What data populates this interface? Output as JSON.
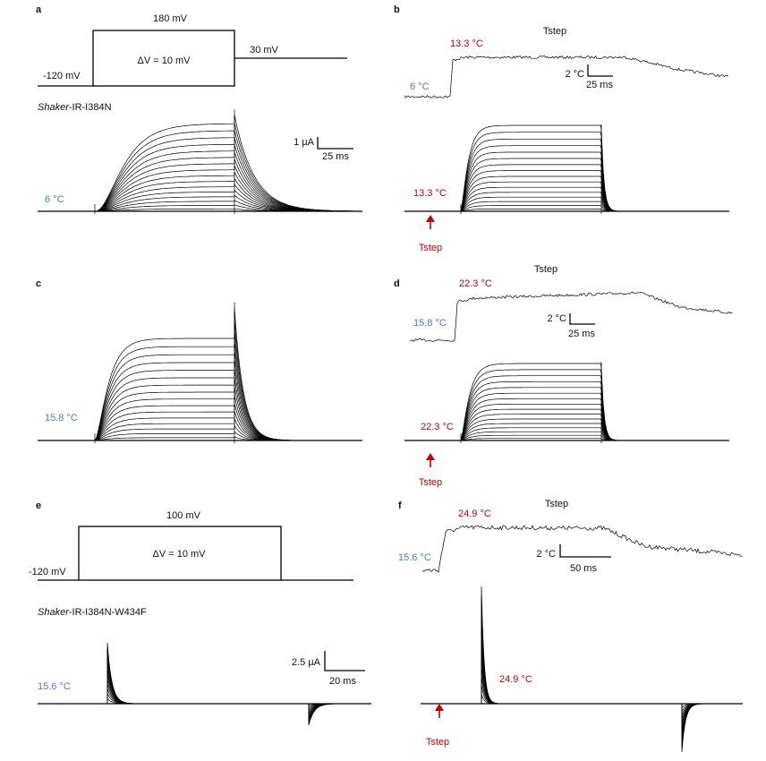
{
  "panels": {
    "a": {
      "label": "a",
      "protocol": {
        "top": "180 mV",
        "hold": "-120 mV",
        "step": "ΔV = 10 mV",
        "tail": "30 mV"
      },
      "construct": {
        "gene": "Shaker",
        "suffix": "-IR-I384N"
      },
      "scale": {
        "current": "1 µA",
        "time": "25 ms"
      },
      "temp": "6 °C"
    },
    "b": {
      "label": "b",
      "title": "Tstep",
      "high": "13.3 °C",
      "low": "6 °C",
      "scale": {
        "temp": "2 °C",
        "time": "25 ms"
      },
      "current_temp": "13.3 °C",
      "arrow": "Tstep"
    },
    "c": {
      "label": "c",
      "temp": "15.8 °C"
    },
    "d": {
      "label": "d",
      "title": "Tstep",
      "high": "22.3 °C",
      "low": "15.8 °C",
      "scale": {
        "temp": "2 °C",
        "time": "25 ms"
      },
      "current_temp": "22.3 °C",
      "arrow": "Tstep"
    },
    "e": {
      "label": "e",
      "protocol": {
        "top": "100 mV",
        "hold": "-120 mV",
        "step": "ΔV = 10 mV"
      },
      "construct": {
        "gene": "Shaker",
        "suffix": "-IR-I384N-W434F"
      },
      "scale": {
        "current": "2.5 µA",
        "time": "20 ms"
      },
      "temp": "15.6 °C"
    },
    "f": {
      "label": "f",
      "title": "Tstep",
      "high": "24.9 °C",
      "low": "15.6 °C",
      "scale": {
        "temp": "2 °C",
        "time": "50  ms"
      },
      "current_temp": "24.9 °C",
      "arrow": "Tstep"
    }
  }
}
